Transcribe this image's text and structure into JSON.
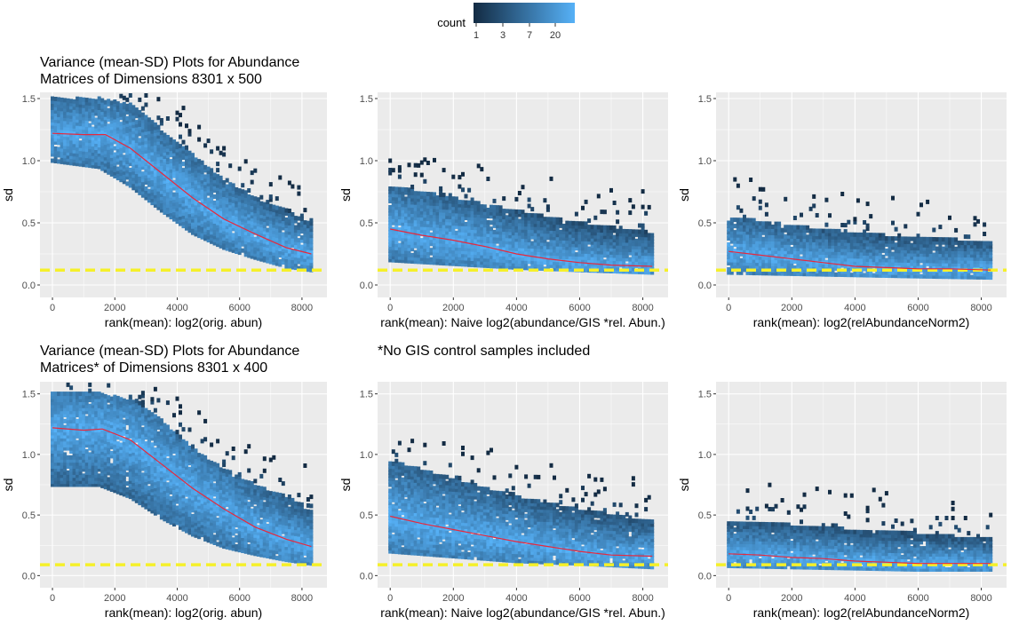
{
  "legend": {
    "title": "count",
    "ticks": [
      "1",
      "3",
      "7",
      "20"
    ],
    "color_low": "#132B43",
    "color_high": "#56B1F7"
  },
  "titles": {
    "row1": [
      "Variance (mean-SD) Plots for Abundance",
      "Matrices of Dimensions 8301 x 500"
    ],
    "row2": [
      "Variance (mean-SD) Plots for Abundance",
      "Matrices* of Dimensions 8301 x 400"
    ],
    "note": "*No GIS control samples included"
  },
  "colors": {
    "panel_bg": "#EBEBEB",
    "grid": "#FFFFFF",
    "trend_line": "#E8283C",
    "reference_line": "#F5F02A"
  },
  "chart_data": [
    {
      "type": "heatmap",
      "row": 1,
      "col": 1,
      "xlabel": "rank(mean): log2(orig. abun)",
      "ylabel": "sd",
      "xticks": [
        0,
        2000,
        4000,
        6000,
        8000
      ],
      "yticks": [
        0.0,
        0.5,
        1.0,
        1.5
      ],
      "xlim": [
        -400,
        8800
      ],
      "ylim": [
        -0.1,
        1.55
      ],
      "hline": 0.12,
      "trend": [
        [
          0,
          1.22
        ],
        [
          1000,
          1.21
        ],
        [
          1700,
          1.21
        ],
        [
          2500,
          1.1
        ],
        [
          3500,
          0.9
        ],
        [
          4500,
          0.7
        ],
        [
          5500,
          0.53
        ],
        [
          6500,
          0.41
        ],
        [
          7500,
          0.3
        ],
        [
          8300,
          0.25
        ]
      ],
      "band": [
        [
          0,
          1.0,
          1.5
        ],
        [
          1500,
          0.95,
          1.5
        ],
        [
          2500,
          0.8,
          1.45
        ],
        [
          3500,
          0.6,
          1.25
        ],
        [
          4500,
          0.42,
          1.05
        ],
        [
          5500,
          0.3,
          0.85
        ],
        [
          6500,
          0.22,
          0.7
        ],
        [
          7500,
          0.15,
          0.6
        ],
        [
          8300,
          0.12,
          0.5
        ]
      ]
    },
    {
      "type": "heatmap",
      "row": 1,
      "col": 2,
      "xlabel": "rank(mean):  Naive log2(abundance/GIS *rel. Abun.)",
      "ylabel": "sd",
      "xticks": [
        0,
        2000,
        4000,
        6000,
        8000
      ],
      "yticks": [
        0.0,
        0.5,
        1.0,
        1.5
      ],
      "xlim": [
        -400,
        8800
      ],
      "ylim": [
        -0.1,
        1.55
      ],
      "hline": 0.12,
      "trend": [
        [
          0,
          0.45
        ],
        [
          1000,
          0.4
        ],
        [
          2000,
          0.36
        ],
        [
          3000,
          0.31
        ],
        [
          4000,
          0.25
        ],
        [
          5000,
          0.21
        ],
        [
          6000,
          0.18
        ],
        [
          7000,
          0.16
        ],
        [
          8300,
          0.15
        ]
      ],
      "band": [
        [
          0,
          0.2,
          0.8
        ],
        [
          2000,
          0.17,
          0.7
        ],
        [
          4000,
          0.14,
          0.6
        ],
        [
          6000,
          0.12,
          0.5
        ],
        [
          8300,
          0.1,
          0.42
        ]
      ]
    },
    {
      "type": "heatmap",
      "row": 1,
      "col": 3,
      "xlabel": "rank(mean):  log2(relAbundanceNorm2)",
      "ylabel": "sd",
      "xticks": [
        0,
        2000,
        4000,
        6000,
        8000
      ],
      "yticks": [
        0.0,
        0.5,
        1.0,
        1.5
      ],
      "xlim": [
        -400,
        8800
      ],
      "ylim": [
        -0.1,
        1.55
      ],
      "hline": 0.12,
      "trend": [
        [
          0,
          0.27
        ],
        [
          1000,
          0.24
        ],
        [
          2000,
          0.21
        ],
        [
          3000,
          0.18
        ],
        [
          4000,
          0.15
        ],
        [
          5000,
          0.14
        ],
        [
          6000,
          0.13
        ],
        [
          7000,
          0.13
        ],
        [
          8300,
          0.12
        ]
      ],
      "band": [
        [
          0,
          0.1,
          0.55
        ],
        [
          2000,
          0.09,
          0.48
        ],
        [
          4000,
          0.08,
          0.42
        ],
        [
          6000,
          0.07,
          0.38
        ],
        [
          8300,
          0.06,
          0.35
        ]
      ]
    },
    {
      "type": "heatmap",
      "row": 2,
      "col": 1,
      "xlabel": "rank(mean): log2(orig. abun)",
      "ylabel": "sd",
      "xticks": [
        0,
        2000,
        4000,
        6000,
        8000
      ],
      "yticks": [
        0.0,
        0.5,
        1.0,
        1.5
      ],
      "xlim": [
        -400,
        8800
      ],
      "ylim": [
        -0.1,
        1.6
      ],
      "hline": 0.09,
      "trend": [
        [
          0,
          1.22
        ],
        [
          1000,
          1.2
        ],
        [
          1600,
          1.21
        ],
        [
          2500,
          1.12
        ],
        [
          3500,
          0.92
        ],
        [
          4500,
          0.72
        ],
        [
          5500,
          0.55
        ],
        [
          6500,
          0.4
        ],
        [
          7500,
          0.3
        ],
        [
          8300,
          0.24
        ]
      ],
      "band": [
        [
          0,
          0.75,
          1.5
        ],
        [
          1500,
          0.75,
          1.5
        ],
        [
          2500,
          0.65,
          1.45
        ],
        [
          3500,
          0.48,
          1.28
        ],
        [
          4500,
          0.34,
          1.05
        ],
        [
          5500,
          0.24,
          0.88
        ],
        [
          6500,
          0.18,
          0.75
        ],
        [
          7500,
          0.13,
          0.65
        ],
        [
          8300,
          0.1,
          0.55
        ]
      ]
    },
    {
      "type": "heatmap",
      "row": 2,
      "col": 2,
      "xlabel": "rank(mean):  Naive log2(abundance/GIS *rel. Abun.)",
      "ylabel": "sd",
      "xticks": [
        0,
        2000,
        4000,
        6000,
        8000
      ],
      "yticks": [
        0.0,
        0.5,
        1.0,
        1.5
      ],
      "xlim": [
        -400,
        8800
      ],
      "ylim": [
        -0.1,
        1.6
      ],
      "hline": 0.09,
      "trend": [
        [
          0,
          0.49
        ],
        [
          1000,
          0.43
        ],
        [
          2000,
          0.38
        ],
        [
          3000,
          0.33
        ],
        [
          4000,
          0.28
        ],
        [
          5000,
          0.24
        ],
        [
          6000,
          0.2
        ],
        [
          7000,
          0.17
        ],
        [
          8300,
          0.16
        ]
      ],
      "band": [
        [
          0,
          0.2,
          0.95
        ],
        [
          2000,
          0.16,
          0.8
        ],
        [
          4000,
          0.12,
          0.65
        ],
        [
          6000,
          0.1,
          0.55
        ],
        [
          8300,
          0.07,
          0.45
        ]
      ]
    },
    {
      "type": "heatmap",
      "row": 2,
      "col": 3,
      "xlabel": "rank(mean):  log2(relAbundanceNorm2)",
      "ylabel": "sd",
      "xticks": [
        0,
        2000,
        4000,
        6000,
        8000
      ],
      "yticks": [
        0.0,
        0.5,
        1.0,
        1.5
      ],
      "xlim": [
        -400,
        8800
      ],
      "ylim": [
        -0.1,
        1.6
      ],
      "hline": 0.09,
      "trend": [
        [
          0,
          0.18
        ],
        [
          1000,
          0.17
        ],
        [
          2000,
          0.15
        ],
        [
          3000,
          0.14
        ],
        [
          4000,
          0.12
        ],
        [
          5000,
          0.11
        ],
        [
          6000,
          0.1
        ],
        [
          7000,
          0.1
        ],
        [
          8300,
          0.1
        ]
      ],
      "band": [
        [
          0,
          0.08,
          0.45
        ],
        [
          2000,
          0.07,
          0.42
        ],
        [
          4000,
          0.06,
          0.38
        ],
        [
          6000,
          0.05,
          0.35
        ],
        [
          8300,
          0.05,
          0.3
        ]
      ]
    }
  ]
}
